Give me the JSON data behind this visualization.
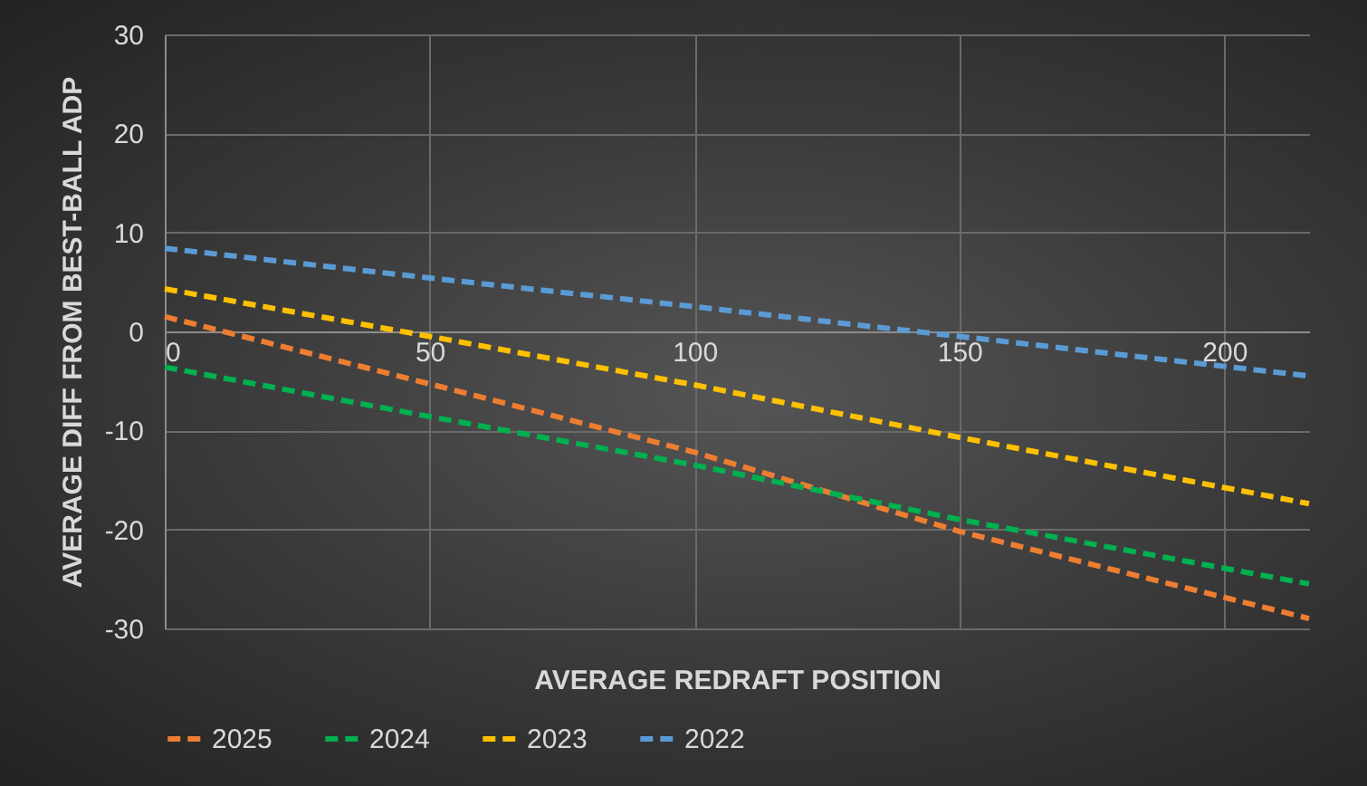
{
  "chart_data": {
    "type": "line",
    "xlabel": "AVERAGE REDRAFT POSITION",
    "ylabel": "AVERAGE DIFF FROM BEST-BALL ADP",
    "x": [
      0,
      50,
      100,
      150,
      216
    ],
    "series": [
      {
        "name": "2025",
        "color": "#ed7d31",
        "values": [
          1.5,
          -5.3,
          -12.2,
          -20.2,
          -29.0
        ]
      },
      {
        "name": "2024",
        "color": "#00b050",
        "values": [
          -3.6,
          -8.6,
          -13.5,
          -19.0,
          -25.5
        ]
      },
      {
        "name": "2023",
        "color": "#ffc000",
        "values": [
          4.3,
          -0.5,
          -5.4,
          -10.7,
          -17.4
        ]
      },
      {
        "name": "2022",
        "color": "#5b9bd5",
        "values": [
          8.4,
          5.4,
          2.5,
          -0.5,
          -4.5
        ]
      }
    ],
    "xlim": [
      0,
      216
    ],
    "xticks": [
      0,
      50,
      100,
      150,
      200
    ],
    "ylim": [
      -30,
      30
    ],
    "yticks": [
      -30,
      -20,
      -10,
      0,
      10,
      20,
      30
    ],
    "grid": true,
    "legend": "bottom",
    "line_style": "dashed",
    "marker": "none"
  }
}
